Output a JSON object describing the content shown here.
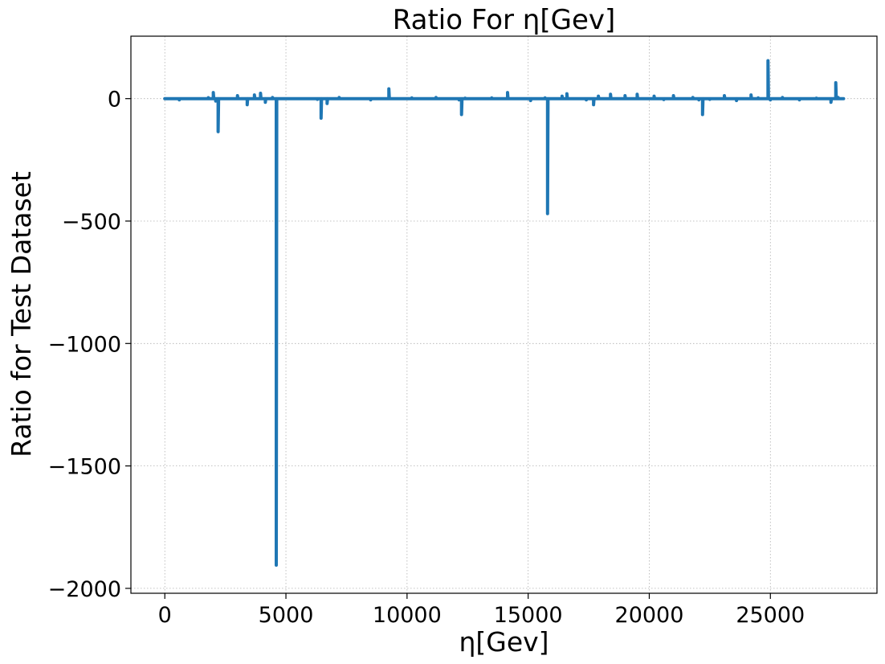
{
  "chart_data": {
    "type": "line",
    "title": "Ratio For η[Gev]",
    "xlabel": "η[Gev]",
    "ylabel": "Ratio for Test Dataset",
    "xlim": [
      -1400,
      29400
    ],
    "ylim": [
      -2020,
      255
    ],
    "xticks": [
      0,
      5000,
      10000,
      15000,
      20000,
      25000
    ],
    "xtick_labels": [
      "0",
      "5000",
      "10000",
      "15000",
      "20000",
      "25000"
    ],
    "yticks": [
      0,
      -500,
      -1000,
      -1500,
      -2000
    ],
    "ytick_labels": [
      "0",
      "−500",
      "−1000",
      "−1500",
      "−2000"
    ],
    "grid": true,
    "legend": "none",
    "series": [
      {
        "color": "#1f77b4",
        "x": [
          0,
          600,
          1800,
          2000,
          2100,
          2200,
          3000,
          3400,
          3700,
          3950,
          4150,
          4450,
          4600,
          5500,
          6300,
          6450,
          6700,
          7200,
          8500,
          9250,
          9300,
          10200,
          11200,
          12150,
          12250,
          12400,
          13500,
          14000,
          14150,
          15100,
          15700,
          15800,
          16400,
          16600,
          17400,
          17700,
          17900,
          18400,
          19000,
          19500,
          20200,
          20600,
          21000,
          21800,
          22050,
          22200,
          22500,
          23100,
          23600,
          24200,
          24500,
          24900,
          25000,
          25500,
          26200,
          26900,
          27500,
          27700,
          27800,
          28000
        ],
        "y": [
          0,
          -5,
          4,
          25,
          -10,
          -135,
          12,
          -25,
          15,
          22,
          -15,
          5,
          -1905,
          0,
          -3,
          -80,
          -20,
          5,
          -5,
          40,
          0,
          3,
          5,
          -5,
          -65,
          2,
          3,
          0,
          25,
          -8,
          3,
          -470,
          10,
          20,
          -5,
          -25,
          10,
          18,
          12,
          18,
          10,
          -4,
          12,
          5,
          -5,
          -65,
          -3,
          12,
          -8,
          15,
          3,
          155,
          -5,
          5,
          -5,
          2,
          -15,
          65,
          5,
          0
        ]
      }
    ]
  }
}
